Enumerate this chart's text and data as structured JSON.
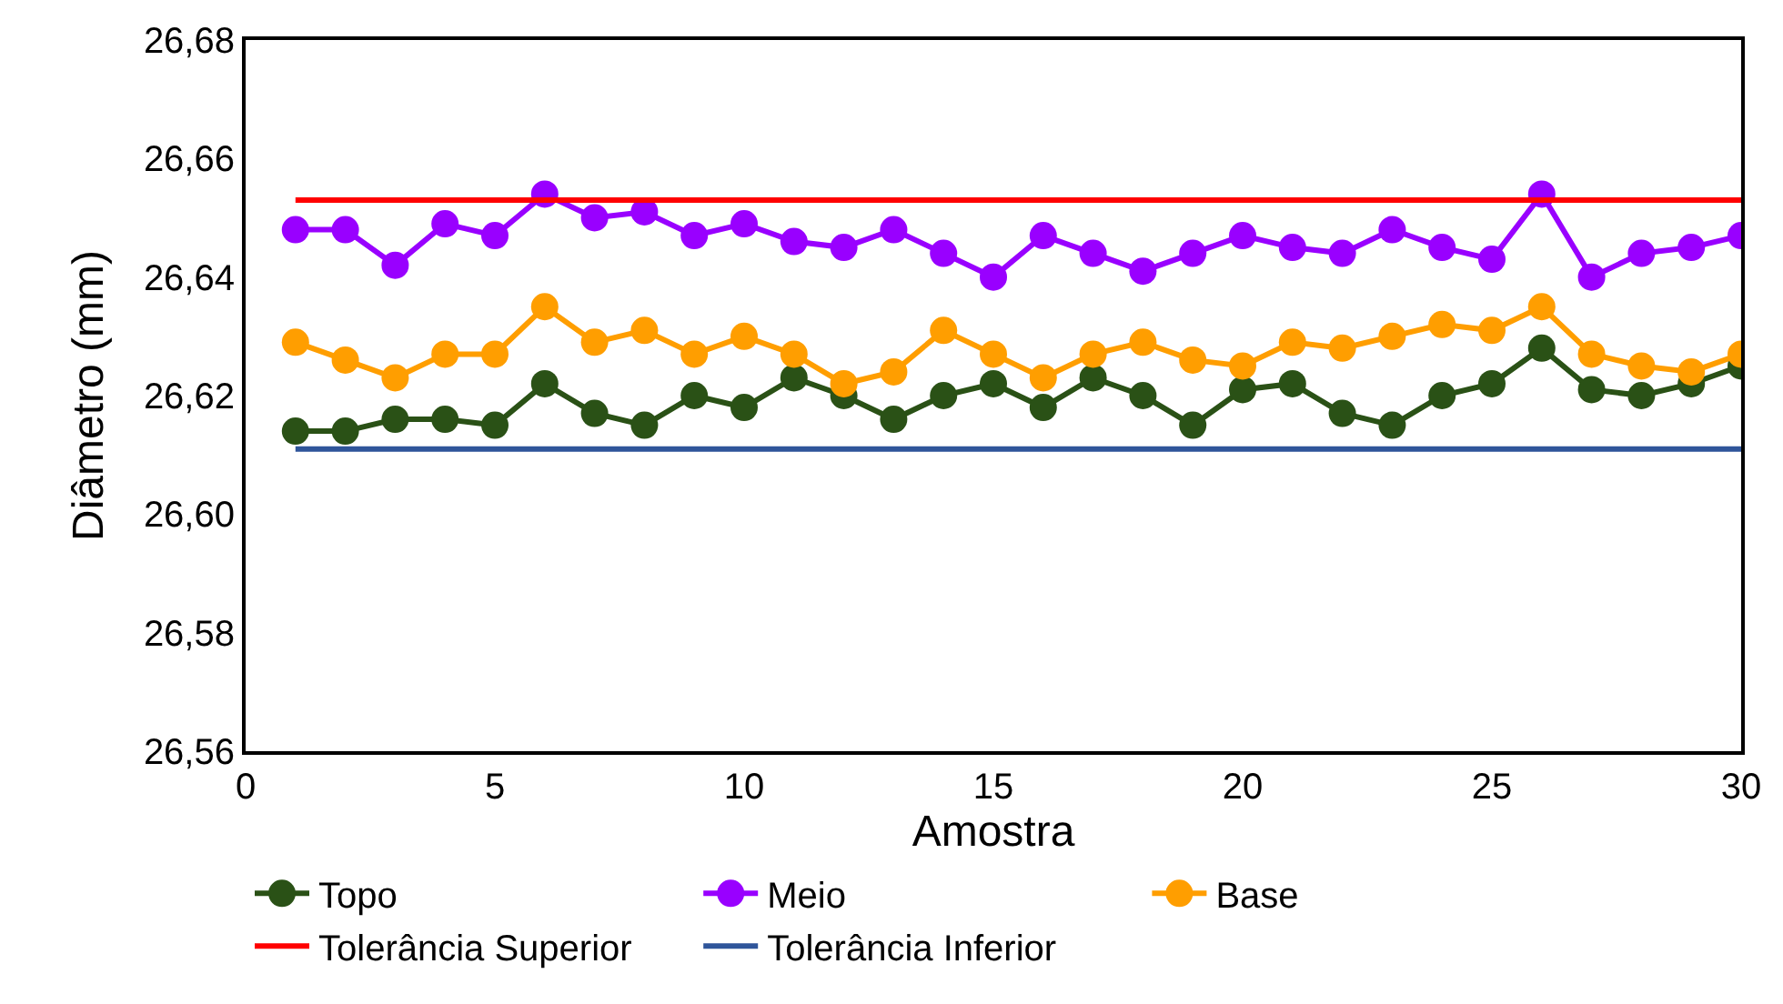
{
  "chart_data": {
    "type": "line",
    "xlabel": "Amostra",
    "ylabel": "Diâmetro (mm)",
    "x": [
      1,
      2,
      3,
      4,
      5,
      6,
      7,
      8,
      9,
      10,
      11,
      12,
      13,
      14,
      15,
      16,
      17,
      18,
      19,
      20,
      21,
      22,
      23,
      24,
      25,
      26,
      27,
      28,
      29,
      30
    ],
    "series": [
      {
        "name": "Topo",
        "color": "#2a5116",
        "marker": "circle",
        "values": [
          26.614,
          26.614,
          26.616,
          26.616,
          26.615,
          26.622,
          26.617,
          26.615,
          26.62,
          26.618,
          26.623,
          26.62,
          26.616,
          26.62,
          26.622,
          26.618,
          26.623,
          26.62,
          26.615,
          26.621,
          26.622,
          26.617,
          26.615,
          26.62,
          26.622,
          26.628,
          26.621,
          26.62,
          26.622,
          26.625
        ]
      },
      {
        "name": "Meio",
        "color": "#9900ff",
        "marker": "circle",
        "values": [
          26.648,
          26.648,
          26.642,
          26.649,
          26.647,
          26.654,
          26.65,
          26.651,
          26.647,
          26.649,
          26.646,
          26.645,
          26.648,
          26.644,
          26.64,
          26.647,
          26.644,
          26.641,
          26.644,
          26.647,
          26.645,
          26.644,
          26.648,
          26.645,
          26.643,
          26.654,
          26.64,
          26.644,
          26.645,
          26.647
        ]
      },
      {
        "name": "Base",
        "color": "#ff9e00",
        "marker": "circle",
        "values": [
          26.629,
          26.626,
          26.623,
          26.627,
          26.627,
          26.635,
          26.629,
          26.631,
          26.627,
          26.63,
          26.627,
          26.622,
          26.624,
          26.631,
          26.627,
          26.623,
          26.627,
          26.629,
          26.626,
          26.625,
          26.629,
          26.628,
          26.63,
          26.632,
          26.631,
          26.635,
          26.627,
          26.625,
          26.624,
          26.627
        ]
      },
      {
        "name": "Tolerância Superior",
        "color": "#ff0000",
        "marker": "none",
        "values": [
          26.653,
          26.653,
          26.653,
          26.653,
          26.653,
          26.653,
          26.653,
          26.653,
          26.653,
          26.653,
          26.653,
          26.653,
          26.653,
          26.653,
          26.653,
          26.653,
          26.653,
          26.653,
          26.653,
          26.653,
          26.653,
          26.653,
          26.653,
          26.653,
          26.653,
          26.653,
          26.653,
          26.653,
          26.653,
          26.653
        ]
      },
      {
        "name": "Tolerância Inferior",
        "color": "#2f559a",
        "marker": "none",
        "values": [
          26.611,
          26.611,
          26.611,
          26.611,
          26.611,
          26.611,
          26.611,
          26.611,
          26.611,
          26.611,
          26.611,
          26.611,
          26.611,
          26.611,
          26.611,
          26.611,
          26.611,
          26.611,
          26.611,
          26.611,
          26.611,
          26.611,
          26.611,
          26.611,
          26.611,
          26.611,
          26.611,
          26.611,
          26.611,
          26.611
        ]
      }
    ],
    "xlim": [
      0,
      30
    ],
    "xticks": [
      0,
      5,
      10,
      15,
      20,
      25,
      30
    ],
    "ylim": [
      26.56,
      26.68
    ],
    "yticks": [
      {
        "value": 26.56,
        "label": "26,56"
      },
      {
        "value": 26.58,
        "label": "26,58"
      },
      {
        "value": 26.6,
        "label": "26,60"
      },
      {
        "value": 26.62,
        "label": "26,62"
      },
      {
        "value": 26.64,
        "label": "26,64"
      },
      {
        "value": 26.66,
        "label": "26,66"
      },
      {
        "value": 26.68,
        "label": "26,68"
      }
    ],
    "legend": "bottom"
  }
}
